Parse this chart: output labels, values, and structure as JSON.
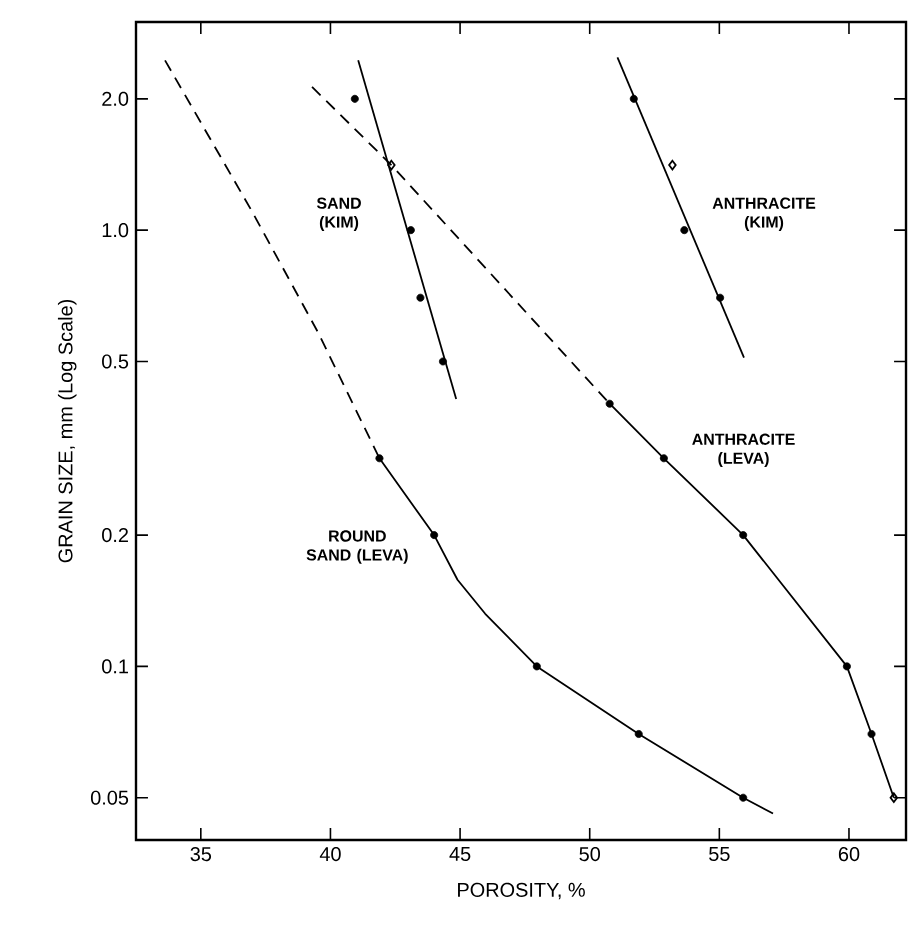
{
  "chart_data": {
    "type": "line",
    "xlabel": "POROSITY, %",
    "ylabel": "GRAIN SIZE, mm  (Log Scale)",
    "log": "y",
    "xlim": [
      32.5,
      62.2
    ],
    "ylim": [
      0.04,
      3.0
    ],
    "xticks": [
      35,
      40,
      45,
      50,
      55,
      60
    ],
    "yticks": [
      {
        "value": 0.05,
        "label": "0.05"
      },
      {
        "value": 0.1,
        "label": "0.1"
      },
      {
        "value": 0.2,
        "label": "0.2"
      },
      {
        "value": 0.5,
        "label": "0.5"
      },
      {
        "value": 1,
        "label": "1.0"
      },
      {
        "value": 2,
        "label": "2.0"
      }
    ],
    "grid": false,
    "marker": "none",
    "series": [
      {
        "type": "line",
        "line_style": "dashed",
        "color": "#000000",
        "x": [
          33.62,
          36.99,
          39.54,
          41.89
        ],
        "values": [
          2.45,
          1.1,
          0.58,
          0.3
        ]
      },
      {
        "type": "line",
        "line_style": "solid",
        "color": "#000000",
        "x": [
          41.89,
          44.0,
          44.9,
          45.97,
          47.96,
          51.89,
          55.92,
          57.07
        ],
        "values": [
          0.3,
          0.2,
          0.158,
          0.132,
          0.1,
          0.07,
          0.05,
          0.046
        ]
      },
      {
        "type": "scatter",
        "name": "ROUND SAND (LEVA)",
        "marker": "circle",
        "color": "#000000",
        "x": [
          41.89,
          44.0,
          47.96,
          51.89,
          55.92
        ],
        "values": [
          0.3,
          0.2,
          0.1,
          0.07,
          0.05
        ]
      },
      {
        "type": "line",
        "line_style": "solid",
        "color": "#000000",
        "x": [
          41.07,
          44.85
        ],
        "values": [
          2.45,
          0.41
        ]
      },
      {
        "type": "scatter",
        "name": "SAND (KIM)",
        "marker": "circle",
        "color": "#000000",
        "x": [
          40.94,
          43.1,
          43.47,
          44.34
        ],
        "values": [
          2.0,
          1.0,
          0.7,
          0.5
        ]
      },
      {
        "type": "line",
        "line_style": "dashed",
        "color": "#000000",
        "x": [
          39.29,
          42.35,
          50.77
        ],
        "values": [
          2.13,
          1.41,
          0.4
        ]
      },
      {
        "type": "line",
        "line_style": "solid",
        "color": "#000000",
        "x": [
          50.77,
          52.86,
          55.92,
          59.92,
          60.87,
          61.73
        ],
        "values": [
          0.4,
          0.3,
          0.2,
          0.1,
          0.07,
          0.05
        ]
      },
      {
        "type": "scatter",
        "name": "ANTHRACITE (LEVA)",
        "marker": "circle",
        "color": "#000000",
        "x": [
          50.77,
          52.86,
          55.92,
          59.92,
          60.87
        ],
        "values": [
          0.4,
          0.3,
          0.2,
          0.1,
          0.07
        ]
      },
      {
        "type": "line",
        "line_style": "solid",
        "color": "#000000",
        "x": [
          51.07,
          55.95
        ],
        "values": [
          2.49,
          0.51
        ]
      },
      {
        "type": "scatter",
        "name": "ANTHRACITE (KIM)",
        "marker": "circle",
        "color": "#000000",
        "x": [
          51.7,
          53.65,
          55.03
        ],
        "values": [
          2.0,
          1.0,
          0.7
        ]
      },
      {
        "type": "scatter",
        "marker": "diamond",
        "color": "#000000",
        "x": [
          42.35,
          53.19,
          61.73
        ],
        "values": [
          1.41,
          1.41,
          0.05
        ]
      }
    ]
  }
}
